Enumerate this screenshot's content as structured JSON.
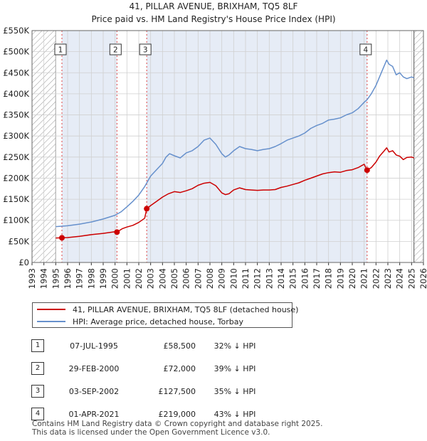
{
  "header": {
    "title": "41, PILLAR AVENUE, BRIXHAM, TQ5 8LF",
    "subtitle": "Price paid vs. HM Land Registry's House Price Index (HPI)"
  },
  "colors": {
    "price_line": "#cc0000",
    "hpi_line": "#6690cc",
    "shade": "#e6ecf6",
    "hatch": "#999999",
    "grid": "#d0d0d0",
    "marker_line": "#dd4444"
  },
  "chart_data": {
    "type": "line",
    "title": "Price paid vs. HM Land Registry's House Price Index (HPI)",
    "xlim": [
      1993,
      2026
    ],
    "ylim": [
      0,
      550000
    ],
    "x_ticks": [
      1993,
      1994,
      1995,
      1996,
      1997,
      1998,
      1999,
      2000,
      2001,
      2002,
      2003,
      2004,
      2005,
      2006,
      2007,
      2008,
      2009,
      2010,
      2011,
      2012,
      2013,
      2014,
      2015,
      2016,
      2017,
      2018,
      2019,
      2020,
      2021,
      2022,
      2023,
      2024,
      2025,
      2026
    ],
    "y_ticks": [
      {
        "value": 0,
        "label": "£0"
      },
      {
        "value": 50000,
        "label": "£50K"
      },
      {
        "value": 100000,
        "label": "£100K"
      },
      {
        "value": 150000,
        "label": "£150K"
      },
      {
        "value": 200000,
        "label": "£200K"
      },
      {
        "value": 250000,
        "label": "£250K"
      },
      {
        "value": 300000,
        "label": "£300K"
      },
      {
        "value": 350000,
        "label": "£350K"
      },
      {
        "value": 400000,
        "label": "£400K"
      },
      {
        "value": 450000,
        "label": "£450K"
      },
      {
        "value": 500000,
        "label": "£500K"
      },
      {
        "value": 550000,
        "label": "£550K"
      }
    ],
    "data_start": 1995.0,
    "data_end": 2025.2,
    "shaded_regions": [
      [
        1995.52,
        2000.16
      ],
      [
        2002.67,
        2021.25
      ]
    ],
    "series": [
      {
        "name": "41, PILLAR AVENUE, BRIXHAM, TQ5 8LF (detached house)",
        "color": "#cc0000",
        "points": [
          [
            1995.0,
            58000
          ],
          [
            1995.52,
            58500
          ],
          [
            1996,
            59000
          ],
          [
            1997,
            62000
          ],
          [
            1998,
            66000
          ],
          [
            1999,
            69000
          ],
          [
            2000.0,
            73000
          ],
          [
            2000.16,
            72000
          ],
          [
            2000.6,
            80000
          ],
          [
            2001,
            84000
          ],
          [
            2001.5,
            88000
          ],
          [
            2002,
            95000
          ],
          [
            2002.5,
            105000
          ],
          [
            2002.67,
            127500
          ],
          [
            2003,
            135000
          ],
          [
            2003.5,
            145000
          ],
          [
            2004,
            155000
          ],
          [
            2004.5,
            163000
          ],
          [
            2005,
            168000
          ],
          [
            2005.5,
            166000
          ],
          [
            2006,
            170000
          ],
          [
            2006.5,
            175000
          ],
          [
            2007,
            183000
          ],
          [
            2007.5,
            188000
          ],
          [
            2008,
            190000
          ],
          [
            2008.5,
            182000
          ],
          [
            2009,
            165000
          ],
          [
            2009.3,
            161000
          ],
          [
            2009.6,
            163000
          ],
          [
            2010,
            172000
          ],
          [
            2010.5,
            177000
          ],
          [
            2011,
            173000
          ],
          [
            2011.5,
            172000
          ],
          [
            2012,
            171000
          ],
          [
            2012.5,
            172000
          ],
          [
            2013,
            172000
          ],
          [
            2013.5,
            173000
          ],
          [
            2014,
            178000
          ],
          [
            2014.5,
            181000
          ],
          [
            2015,
            185000
          ],
          [
            2015.5,
            189000
          ],
          [
            2016,
            195000
          ],
          [
            2016.5,
            200000
          ],
          [
            2017,
            205000
          ],
          [
            2017.5,
            210000
          ],
          [
            2018,
            213000
          ],
          [
            2018.5,
            215000
          ],
          [
            2019,
            214000
          ],
          [
            2019.5,
            218000
          ],
          [
            2020,
            220000
          ],
          [
            2020.5,
            225000
          ],
          [
            2021.0,
            233000
          ],
          [
            2021.25,
            219000
          ],
          [
            2021.6,
            225000
          ],
          [
            2022,
            238000
          ],
          [
            2022.3,
            252000
          ],
          [
            2022.7,
            265000
          ],
          [
            2022.9,
            272000
          ],
          [
            2023.1,
            262000
          ],
          [
            2023.4,
            265000
          ],
          [
            2023.7,
            255000
          ],
          [
            2024,
            252000
          ],
          [
            2024.3,
            244000
          ],
          [
            2024.6,
            249000
          ],
          [
            2025.0,
            250000
          ],
          [
            2025.2,
            248000
          ]
        ]
      },
      {
        "name": "HPI: Average price, detached house, Torbay",
        "color": "#6690cc",
        "points": [
          [
            1995.0,
            85000
          ],
          [
            1995.52,
            86000
          ],
          [
            1996,
            87000
          ],
          [
            1997,
            91000
          ],
          [
            1998,
            96000
          ],
          [
            1999,
            103000
          ],
          [
            2000,
            112000
          ],
          [
            2000.5,
            120000
          ],
          [
            2001,
            132000
          ],
          [
            2001.5,
            145000
          ],
          [
            2002,
            160000
          ],
          [
            2002.5,
            180000
          ],
          [
            2003,
            205000
          ],
          [
            2003.5,
            220000
          ],
          [
            2004,
            235000
          ],
          [
            2004.3,
            250000
          ],
          [
            2004.6,
            258000
          ],
          [
            2005,
            253000
          ],
          [
            2005.5,
            248000
          ],
          [
            2006,
            260000
          ],
          [
            2006.5,
            265000
          ],
          [
            2007,
            275000
          ],
          [
            2007.5,
            290000
          ],
          [
            2008,
            295000
          ],
          [
            2008.5,
            280000
          ],
          [
            2009,
            258000
          ],
          [
            2009.3,
            250000
          ],
          [
            2009.6,
            255000
          ],
          [
            2010,
            265000
          ],
          [
            2010.5,
            275000
          ],
          [
            2011,
            270000
          ],
          [
            2011.5,
            268000
          ],
          [
            2012,
            265000
          ],
          [
            2012.5,
            268000
          ],
          [
            2013,
            270000
          ],
          [
            2013.5,
            275000
          ],
          [
            2014,
            282000
          ],
          [
            2014.5,
            290000
          ],
          [
            2015,
            295000
          ],
          [
            2015.5,
            300000
          ],
          [
            2016,
            307000
          ],
          [
            2016.5,
            318000
          ],
          [
            2017,
            325000
          ],
          [
            2017.5,
            330000
          ],
          [
            2018,
            338000
          ],
          [
            2018.5,
            340000
          ],
          [
            2019,
            343000
          ],
          [
            2019.5,
            350000
          ],
          [
            2020,
            355000
          ],
          [
            2020.5,
            365000
          ],
          [
            2021,
            380000
          ],
          [
            2021.25,
            386000
          ],
          [
            2021.6,
            400000
          ],
          [
            2022,
            420000
          ],
          [
            2022.3,
            440000
          ],
          [
            2022.6,
            460000
          ],
          [
            2022.9,
            480000
          ],
          [
            2023.1,
            470000
          ],
          [
            2023.4,
            465000
          ],
          [
            2023.7,
            445000
          ],
          [
            2024,
            450000
          ],
          [
            2024.3,
            440000
          ],
          [
            2024.6,
            436000
          ],
          [
            2025.0,
            440000
          ],
          [
            2025.2,
            438000
          ]
        ]
      }
    ],
    "sales": [
      {
        "n": "1",
        "year": 1995.52,
        "price": 58500
      },
      {
        "n": "2",
        "year": 2000.16,
        "price": 72000
      },
      {
        "n": "3",
        "year": 2002.67,
        "price": 127500
      },
      {
        "n": "4",
        "year": 2021.25,
        "price": 219000
      }
    ]
  },
  "legend": {
    "price_label": "41, PILLAR AVENUE, BRIXHAM, TQ5 8LF (detached house)",
    "hpi_label": "HPI: Average price, detached house, Torbay"
  },
  "table": {
    "rows": [
      {
        "n": "1",
        "date": "07-JUL-1995",
        "price": "£58,500",
        "hpi": "32% ↓ HPI"
      },
      {
        "n": "2",
        "date": "29-FEB-2000",
        "price": "£72,000",
        "hpi": "39% ↓ HPI"
      },
      {
        "n": "3",
        "date": "03-SEP-2002",
        "price": "£127,500",
        "hpi": "35% ↓ HPI"
      },
      {
        "n": "4",
        "date": "01-APR-2021",
        "price": "£219,000",
        "hpi": "43% ↓ HPI"
      }
    ]
  },
  "footer": {
    "line1": "Contains HM Land Registry data © Crown copyright and database right 2025.",
    "line2": "This data is licensed under the Open Government Licence v3.0."
  }
}
